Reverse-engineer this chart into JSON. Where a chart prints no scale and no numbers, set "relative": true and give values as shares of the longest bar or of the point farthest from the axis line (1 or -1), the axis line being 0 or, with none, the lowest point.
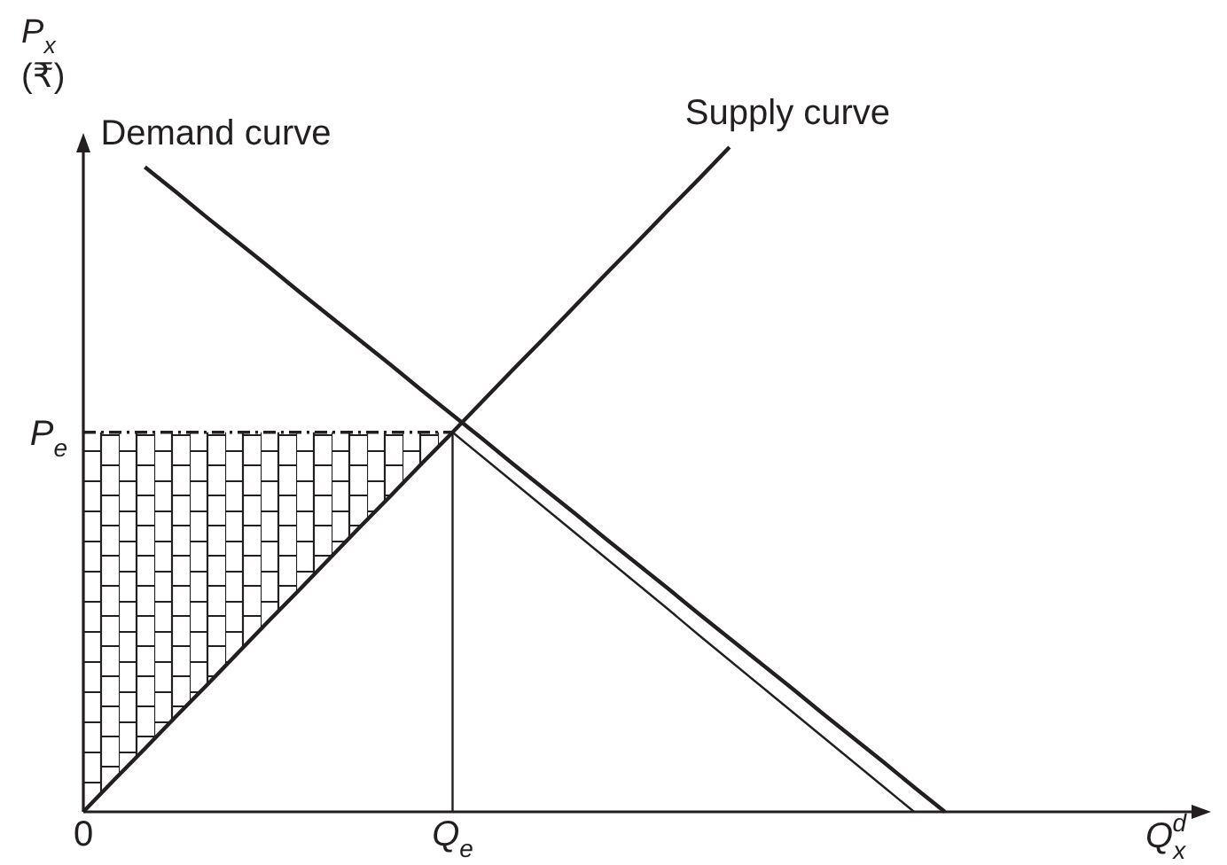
{
  "chart_data": {
    "type": "line",
    "relative": true,
    "ylabel": "P$_{x}$ (₹)",
    "categories": [
      "0",
      null,
      null,
      null,
      null,
      null,
      null,
      null,
      null,
      null,
      null,
      null,
      "Q$_{e}$",
      null,
      null,
      null,
      null,
      null,
      null,
      null,
      null,
      null,
      null,
      null,
      null,
      null,
      null,
      null,
      null
    ],
    "series": [
      {
        "name": "Demand curve",
        "color": "#231f20",
        "values": [
          null,
          null,
          0.97,
          0.933,
          0.895,
          0.858,
          0.821,
          0.783,
          0.746,
          0.709,
          0.672,
          0.634,
          0.597,
          0.56,
          0.522,
          0.485,
          0.448,
          0.41,
          0.373,
          0.336,
          0.298,
          0.261,
          0.224,
          0.187,
          0.149,
          0.112,
          0.075,
          0.037,
          0
        ]
      },
      {
        "name": "Supply curve",
        "color": "#231f20",
        "values": [
          0,
          0.048,
          0.095,
          0.143,
          0.19,
          0.238,
          0.286,
          0.333,
          0.381,
          0.429,
          0.476,
          0.524,
          0.571,
          0.619,
          0.667,
          0.714,
          0.762,
          0.81,
          0.857,
          0.905,
          0.952,
          1,
          null,
          null,
          null,
          null,
          null,
          null,
          null
        ]
      },
      {
        "color": "#231f20",
        "values": [
          null,
          null,
          null,
          null,
          null,
          null,
          null,
          null,
          null,
          null,
          null,
          null,
          0.571,
          0.533,
          0.495,
          0.457,
          0.419,
          0.381,
          0.343,
          0.305,
          0.266,
          0.228,
          0.19,
          0.152,
          0.114,
          0.076,
          0.038,
          0,
          null
        ]
      },
      {
        "color": "#231f20",
        "x": [
          "Q$_{e}$",
          "Q$_{e}$"
        ],
        "values": [
          0,
          0.571
        ]
      },
      {
        "color": "#231f20",
        "line_style": "dashed",
        "values": [
          0.571,
          0.571,
          0.571,
          0.571,
          0.571,
          0.571,
          0.571,
          0.571,
          0.571,
          0.571,
          0.571,
          0.571,
          0.571,
          null,
          null,
          null,
          null,
          null,
          null,
          null,
          null,
          null,
          null,
          null,
          null,
          null,
          null,
          null,
          null
        ],
        "lower": [
          0,
          0.048,
          0.095,
          0.143,
          0.19,
          0.238,
          0.286,
          0.333,
          0.381,
          0.429,
          0.476,
          0.524,
          0.571,
          null,
          null,
          null,
          null,
          null,
          null,
          null,
          null,
          null,
          null,
          null,
          null,
          null,
          null,
          null,
          null
        ],
        "upper": [
          0.571,
          0.571,
          0.571,
          0.571,
          0.571,
          0.571,
          0.571,
          0.571,
          0.571,
          0.571,
          0.571,
          0.571,
          0.571,
          null,
          null,
          null,
          null,
          null,
          null,
          null,
          null,
          null,
          null,
          null,
          null,
          null,
          null,
          null,
          null
        ]
      }
    ],
    "annotations": [
      {
        "text": "P$_{e}$",
        "x": "0",
        "y": 0.571
      },
      "Q$_{x}$$^{d}$"
    ]
  }
}
